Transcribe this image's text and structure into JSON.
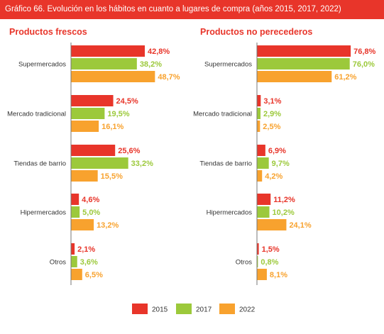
{
  "banner_title": "Gráfico 66. Evolución en los hábitos en cuanto a lugares de compra (años 2015, 2017, 2022)",
  "colors": {
    "y2015": "#e8352a",
    "y2017": "#9cc93b",
    "y2022": "#f8a22e",
    "title": "#e8352a",
    "axis": "#777777"
  },
  "legend": [
    "2015",
    "2017",
    "2022"
  ],
  "chart_data": [
    {
      "type": "bar",
      "orientation": "horizontal",
      "title": "Productos frescos",
      "categories": [
        "Supermercados",
        "Mercado tradicional",
        "Tiendas de barrio",
        "Hipermercados",
        "Otros"
      ],
      "series": [
        {
          "name": "2015",
          "values": [
            42.8,
            24.5,
            25.6,
            4.6,
            2.1
          ],
          "labels": [
            "42,8%",
            "24,5%",
            "25,6%",
            "4,6%",
            "2,1%"
          ]
        },
        {
          "name": "2017",
          "values": [
            38.2,
            19.5,
            33.2,
            5.0,
            3.6
          ],
          "labels": [
            "38,2%",
            "19,5%",
            "33,2%",
            "5,0%",
            "3,6%"
          ]
        },
        {
          "name": "2022",
          "values": [
            48.7,
            16.1,
            15.5,
            13.2,
            6.5
          ],
          "labels": [
            "48,7%",
            "16,1%",
            "15,5%",
            "13,2%",
            "6,5%"
          ]
        }
      ]
    },
    {
      "type": "bar",
      "orientation": "horizontal",
      "title": "Productos no perecederos",
      "categories": [
        "Supermercados",
        "Mercado tradicional",
        "Tiendas de barrio",
        "Hipermercados",
        "Otros"
      ],
      "series": [
        {
          "name": "2015",
          "values": [
            76.8,
            3.1,
            6.9,
            11.2,
            1.5
          ],
          "labels": [
            "76,8%",
            "3,1%",
            "6,9%",
            "11,2%",
            "1,5%"
          ]
        },
        {
          "name": "2017",
          "values": [
            76.0,
            2.9,
            9.7,
            10.2,
            0.8
          ],
          "labels": [
            "76,0%",
            "2,9%",
            "9,7%",
            "10,2%",
            "0,8%"
          ]
        },
        {
          "name": "2022",
          "values": [
            61.2,
            2.5,
            4.2,
            24.1,
            8.1
          ],
          "labels": [
            "61,2%",
            "2,5%",
            "4,2%",
            "24,1%",
            "8,1%"
          ]
        }
      ]
    }
  ]
}
